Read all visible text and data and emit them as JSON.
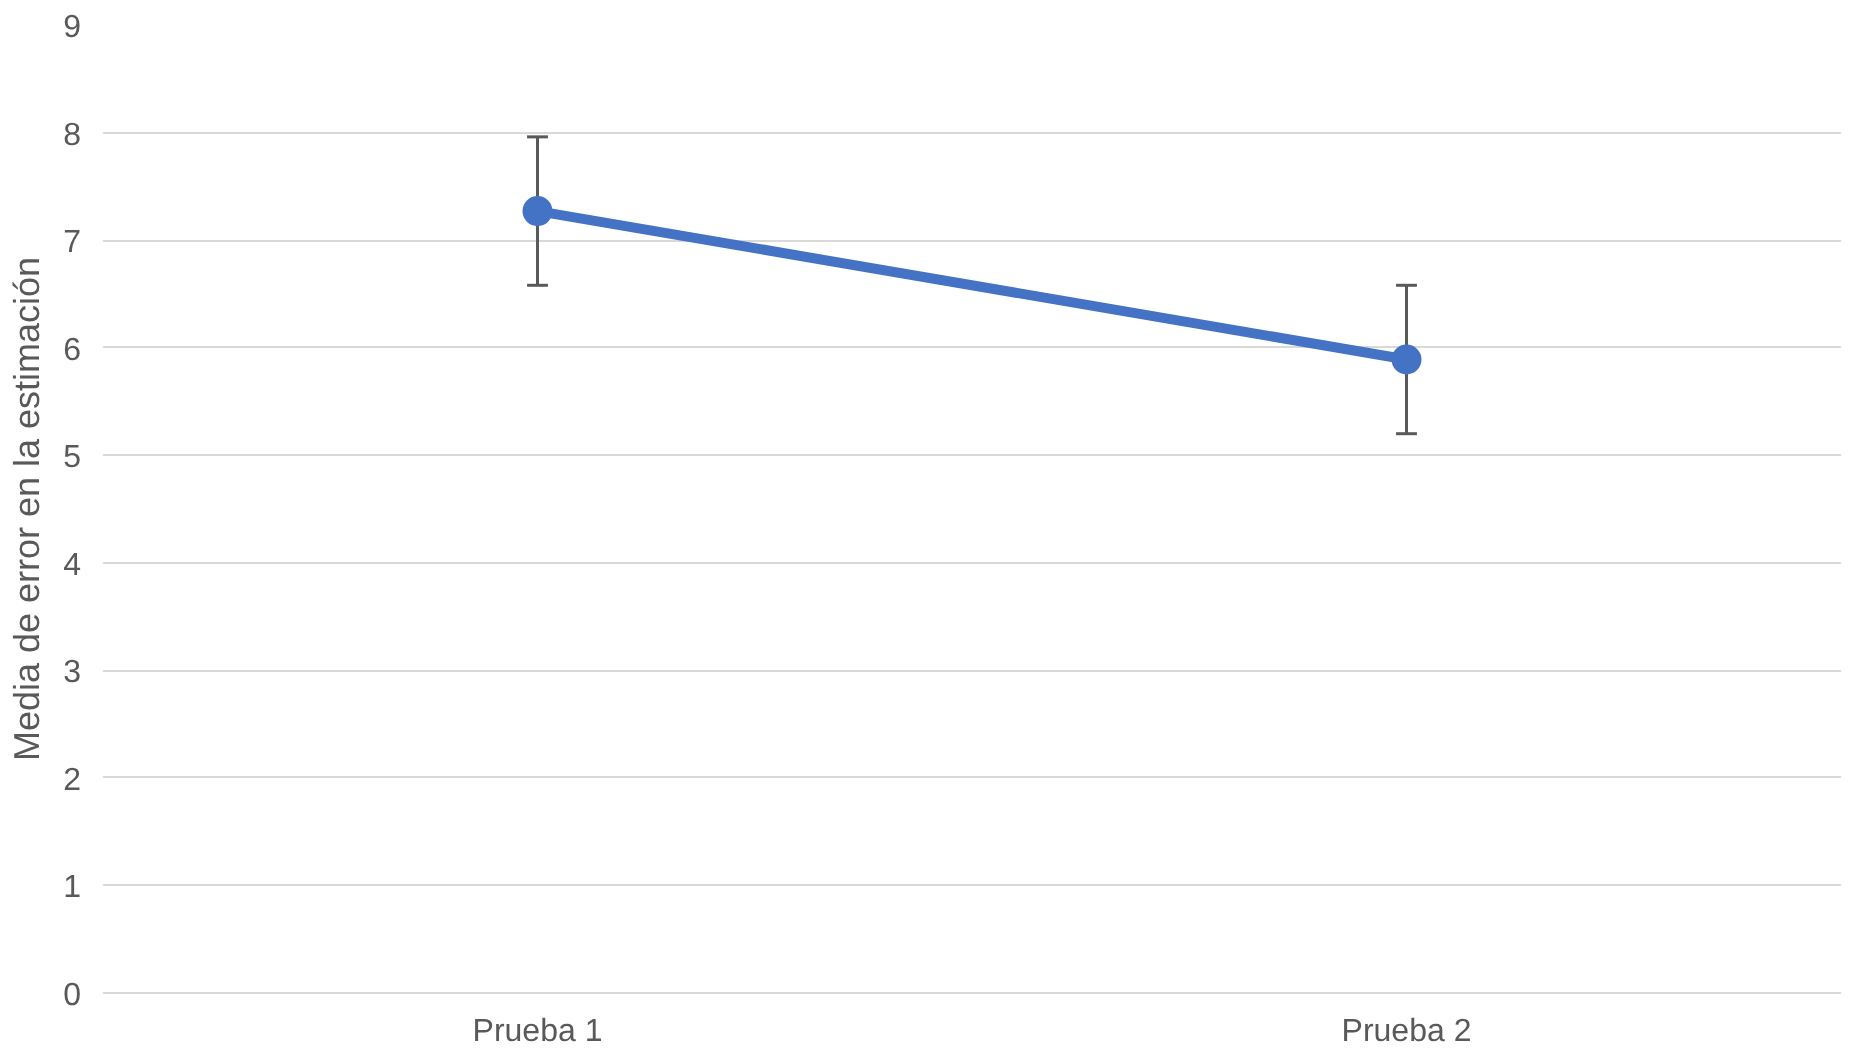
{
  "chart_data": {
    "type": "line",
    "ylabel": "Media de error en la estimación",
    "categories": [
      "Prueba 1",
      "Prueba 2"
    ],
    "series": [
      {
        "color": "#4472c4",
        "values": [
          7.27,
          5.89
        ],
        "errors": [
          0.69,
          0.69
        ]
      }
    ],
    "ylim": [
      0,
      9
    ],
    "yticks": [
      0,
      1,
      2,
      3,
      4,
      5,
      6,
      7,
      8,
      9
    ],
    "grid": "y",
    "marker": "circle",
    "line_style": "solid"
  }
}
